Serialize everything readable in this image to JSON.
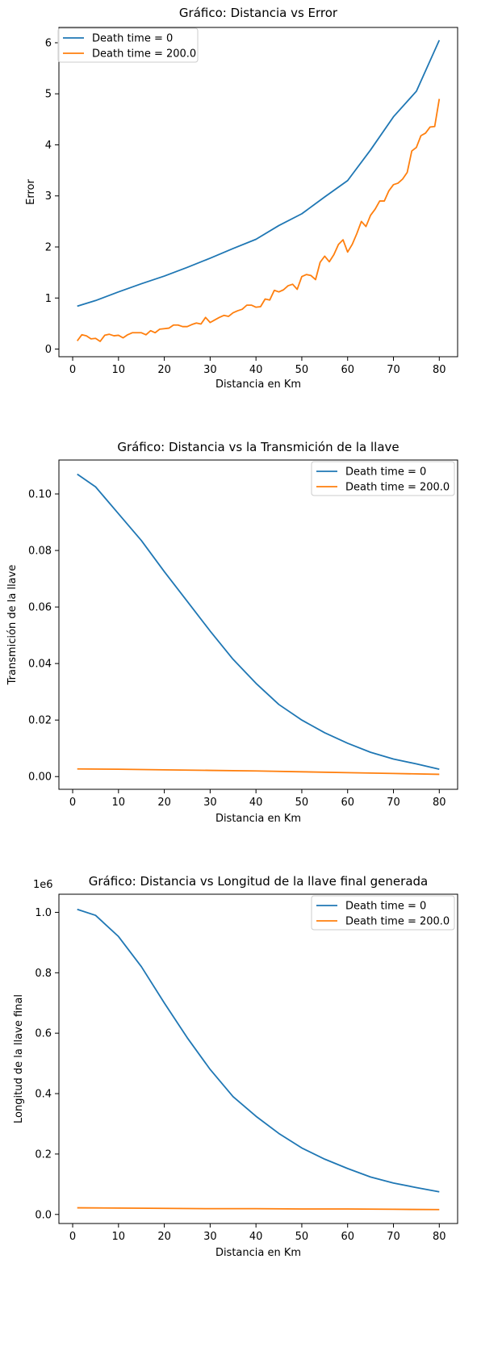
{
  "chart_data": [
    {
      "type": "line",
      "title": "Gráfico: Distancia vs Error",
      "xlabel": "Distancia en Km",
      "ylabel": "Error",
      "xlim": [
        -3,
        84
      ],
      "ylim": [
        -0.15,
        6.3
      ],
      "xticks": [
        0,
        10,
        20,
        30,
        40,
        50,
        60,
        70,
        80
      ],
      "xtick_labels": [
        "0",
        "10",
        "20",
        "30",
        "40",
        "50",
        "60",
        "70",
        "80"
      ],
      "yticks": [
        0,
        1,
        2,
        3,
        4,
        5,
        6
      ],
      "ytick_labels": [
        "0",
        "1",
        "2",
        "3",
        "4",
        "5",
        "6"
      ],
      "offset_label": "",
      "legend_position": "upper-left",
      "grid": false,
      "colors": [
        "#1f77b4",
        "#ff7f0e"
      ],
      "series": [
        {
          "name": "Death time = 0",
          "x": [
            1,
            5,
            10,
            15,
            20,
            25,
            30,
            35,
            40,
            45,
            50,
            55,
            60,
            65,
            70,
            75,
            80
          ],
          "y": [
            0.84,
            0.95,
            1.12,
            1.28,
            1.43,
            1.6,
            1.78,
            1.97,
            2.15,
            2.42,
            2.65,
            2.98,
            3.3,
            3.9,
            4.55,
            5.05,
            6.05
          ]
        },
        {
          "name": "Death time = 200.0",
          "x": [
            1,
            2,
            3,
            4,
            5,
            6,
            7,
            8,
            9,
            10,
            11,
            12,
            13,
            14,
            15,
            16,
            17,
            18,
            19,
            20,
            21,
            22,
            23,
            24,
            25,
            26,
            27,
            28,
            29,
            30,
            31,
            32,
            33,
            34,
            35,
            36,
            37,
            38,
            39,
            40,
            41,
            42,
            43,
            44,
            45,
            46,
            47,
            48,
            49,
            50,
            51,
            52,
            53,
            54,
            55,
            56,
            57,
            58,
            59,
            60,
            61,
            62,
            63,
            64,
            65,
            66,
            67,
            68,
            69,
            70,
            71,
            72,
            73,
            74,
            75,
            76,
            77,
            78,
            79,
            80
          ],
          "y": [
            0.16,
            0.28,
            0.26,
            0.2,
            0.21,
            0.15,
            0.27,
            0.29,
            0.26,
            0.27,
            0.22,
            0.28,
            0.32,
            0.32,
            0.32,
            0.28,
            0.36,
            0.32,
            0.39,
            0.4,
            0.41,
            0.47,
            0.47,
            0.44,
            0.44,
            0.48,
            0.51,
            0.49,
            0.62,
            0.52,
            0.57,
            0.62,
            0.66,
            0.64,
            0.71,
            0.75,
            0.78,
            0.86,
            0.86,
            0.82,
            0.83,
            0.98,
            0.96,
            1.15,
            1.12,
            1.16,
            1.24,
            1.27,
            1.17,
            1.42,
            1.46,
            1.44,
            1.36,
            1.7,
            1.82,
            1.71,
            1.85,
            2.05,
            2.14,
            1.9,
            2.05,
            2.26,
            2.5,
            2.4,
            2.62,
            2.74,
            2.9,
            2.9,
            3.1,
            3.22,
            3.25,
            3.33,
            3.46,
            3.88,
            3.95,
            4.18,
            4.23,
            4.35,
            4.36,
            4.9
          ]
        }
      ]
    },
    {
      "type": "line",
      "title": "Gráfico: Distancia vs la Transmición de la llave",
      "xlabel": "Distancia en Km",
      "ylabel": "Transmición de la llave",
      "xlim": [
        -3,
        84
      ],
      "ylim": [
        -0.0045,
        0.112
      ],
      "xticks": [
        0,
        10,
        20,
        30,
        40,
        50,
        60,
        70,
        80
      ],
      "xtick_labels": [
        "0",
        "10",
        "20",
        "30",
        "40",
        "50",
        "60",
        "70",
        "80"
      ],
      "yticks": [
        0,
        0.02,
        0.04,
        0.06,
        0.08,
        0.1
      ],
      "ytick_labels": [
        "0.00",
        "0.02",
        "0.04",
        "0.06",
        "0.08",
        "0.10"
      ],
      "offset_label": "",
      "legend_position": "upper-right",
      "grid": false,
      "colors": [
        "#1f77b4",
        "#ff7f0e"
      ],
      "series": [
        {
          "name": "Death time = 0",
          "x": [
            1,
            5,
            10,
            15,
            20,
            25,
            30,
            35,
            40,
            45,
            50,
            55,
            60,
            65,
            70,
            75,
            80
          ],
          "y": [
            0.107,
            0.1025,
            0.093,
            0.0835,
            0.0725,
            0.062,
            0.0515,
            0.0415,
            0.033,
            0.0255,
            0.02,
            0.0155,
            0.0118,
            0.0086,
            0.0062,
            0.0045,
            0.0026
          ]
        },
        {
          "name": "Death time = 200.0",
          "x": [
            1,
            10,
            20,
            30,
            40,
            50,
            60,
            70,
            80
          ],
          "y": [
            0.0027,
            0.0026,
            0.0024,
            0.0022,
            0.002,
            0.0017,
            0.0014,
            0.0011,
            0.0008
          ]
        }
      ]
    },
    {
      "type": "line",
      "title": "Gráfico: Distancia vs Longitud de la llave final generada",
      "xlabel": "Distancia en Km",
      "ylabel": "Longitud de la llave final",
      "xlim": [
        -3,
        84
      ],
      "ylim": [
        -0.03,
        1.06
      ],
      "xticks": [
        0,
        10,
        20,
        30,
        40,
        50,
        60,
        70,
        80
      ],
      "xtick_labels": [
        "0",
        "10",
        "20",
        "30",
        "40",
        "50",
        "60",
        "70",
        "80"
      ],
      "yticks": [
        0,
        0.2,
        0.4,
        0.6,
        0.8,
        1.0
      ],
      "ytick_labels": [
        "0.0",
        "0.2",
        "0.4",
        "0.6",
        "0.8",
        "1.0"
      ],
      "offset_label": "1e6",
      "legend_position": "upper-right",
      "grid": false,
      "colors": [
        "#1f77b4",
        "#ff7f0e"
      ],
      "series": [
        {
          "name": "Death time = 0",
          "x": [
            1,
            5,
            10,
            15,
            20,
            25,
            30,
            35,
            40,
            45,
            50,
            55,
            60,
            65,
            70,
            75,
            80
          ],
          "y": [
            1.01,
            0.99,
            0.92,
            0.82,
            0.7,
            0.585,
            0.48,
            0.39,
            0.325,
            0.268,
            0.22,
            0.183,
            0.152,
            0.124,
            0.104,
            0.089,
            0.075
          ]
        },
        {
          "name": "Death time = 200.0",
          "x": [
            1,
            10,
            20,
            30,
            40,
            50,
            60,
            70,
            80
          ],
          "y": [
            0.022,
            0.021,
            0.02,
            0.019,
            0.019,
            0.018,
            0.018,
            0.017,
            0.016
          ]
        }
      ]
    }
  ]
}
